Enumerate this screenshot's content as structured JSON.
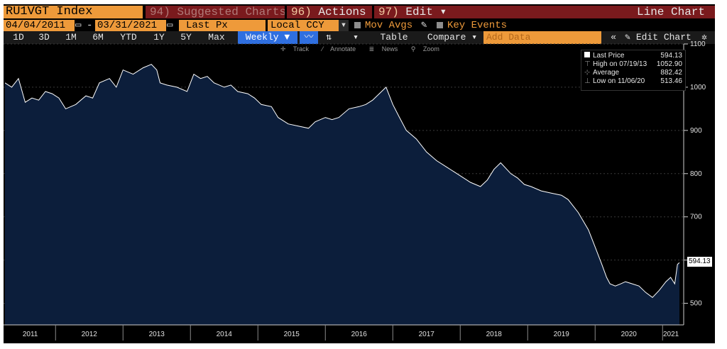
{
  "header": {
    "security": "RU1VGT Index",
    "menu1_num": "94)",
    "menu1_label": "Suggested Charts",
    "menu2_num": "96)",
    "menu2_label": "Actions",
    "menu3_num": "97)",
    "menu3_label": "Edit",
    "title": "Line Chart"
  },
  "controls": {
    "start_date": "04/04/2011",
    "date_sep": "-",
    "end_date": "03/31/2021",
    "field": "Last Px",
    "currency": "Local CCY",
    "mov_avgs": "Mov Avgs",
    "key_events": "Key Events"
  },
  "toolbar": {
    "periods": [
      "1D",
      "3D",
      "1M",
      "6M",
      "YTD",
      "1Y",
      "5Y",
      "Max"
    ],
    "frequency": "Weekly",
    "table_label": "Table",
    "compare_label": "Compare",
    "add_data_placeholder": "Add Data",
    "edit_chart_label": "Edit Chart"
  },
  "chart_tools": [
    "Track",
    "Annotate",
    "News",
    "Zoom"
  ],
  "legend": {
    "items": [
      {
        "label": "Last Price",
        "value": "594.13"
      },
      {
        "label": "High on 07/19/13",
        "value": "1052.90"
      },
      {
        "label": "Average",
        "value": "882.42"
      },
      {
        "label": "Low on 11/06/20",
        "value": "513.46"
      }
    ]
  },
  "last_value_label": "594.13",
  "colors": {
    "line": "#ffffff",
    "fill": "#0c1e3b",
    "background": "#000000",
    "accent": "#ee9a3a",
    "menu": "#7a1a1d"
  },
  "chart_data": {
    "type": "area",
    "ylim": [
      450,
      1100
    ],
    "yticks": [
      500,
      600,
      700,
      800,
      900,
      1000,
      1100
    ],
    "xlim": [
      2011.25,
      2021.25
    ],
    "year_labels": [
      "2011",
      "2012",
      "2013",
      "2014",
      "2015",
      "2016",
      "2017",
      "2018",
      "2019",
      "2020",
      "2021"
    ],
    "series": [
      {
        "x": [
          2011.25,
          2011.35,
          2011.45,
          2011.55,
          2011.65,
          2011.75,
          2011.85,
          2011.95,
          2012.05,
          2012.15,
          2012.3,
          2012.45,
          2012.55,
          2012.65,
          2012.8,
          2012.9,
          2013.0,
          2013.15,
          2013.3,
          2013.42,
          2013.5,
          2013.55,
          2013.65,
          2013.8,
          2013.95,
          2014.05,
          2014.15,
          2014.25,
          2014.35,
          2014.5,
          2014.6,
          2014.7,
          2014.85,
          2014.95,
          2015.05,
          2015.2,
          2015.3,
          2015.45,
          2015.6,
          2015.75,
          2015.85,
          2016.0,
          2016.1,
          2016.2,
          2016.35,
          2016.5,
          2016.6,
          2016.7,
          2016.8,
          2016.9,
          2017.0,
          2017.1,
          2017.2,
          2017.35,
          2017.5,
          2017.65,
          2017.8,
          2017.9,
          2018.0,
          2018.15,
          2018.3,
          2018.4,
          2018.5,
          2018.6,
          2018.75,
          2018.85,
          2018.95,
          2019.05,
          2019.2,
          2019.35,
          2019.5,
          2019.6,
          2019.75,
          2019.9,
          2020.0,
          2020.1,
          2020.17,
          2020.22,
          2020.3,
          2020.38,
          2020.45,
          2020.55,
          2020.65,
          2020.75,
          2020.85,
          2020.95,
          2021.05,
          2021.12,
          2021.18,
          2021.22,
          2021.25
        ],
        "y": [
          1010,
          1000,
          1020,
          965,
          975,
          970,
          990,
          985,
          975,
          950,
          960,
          980,
          975,
          1010,
          1020,
          1000,
          1040,
          1030,
          1045,
          1052.9,
          1040,
          1010,
          1005,
          1000,
          990,
          1030,
          1020,
          1025,
          1010,
          1000,
          1005,
          990,
          985,
          975,
          960,
          955,
          930,
          915,
          910,
          905,
          920,
          930,
          925,
          930,
          950,
          955,
          960,
          970,
          985,
          1000,
          960,
          930,
          900,
          880,
          850,
          830,
          815,
          805,
          795,
          780,
          770,
          785,
          810,
          825,
          800,
          790,
          775,
          770,
          760,
          755,
          750,
          740,
          710,
          670,
          630,
          590,
          560,
          545,
          540,
          545,
          550,
          545,
          540,
          525,
          513.46,
          530,
          550,
          560,
          545,
          590,
          594.13
        ]
      }
    ]
  }
}
